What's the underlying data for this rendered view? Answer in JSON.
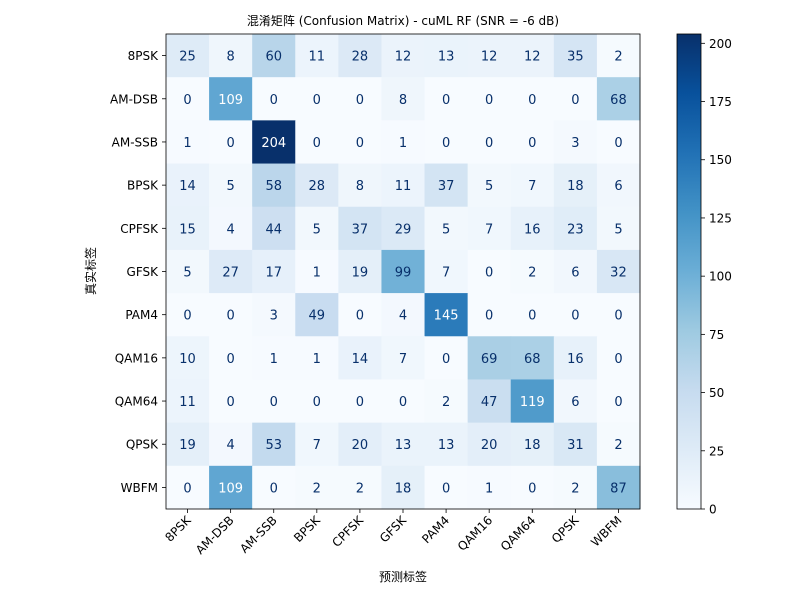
{
  "chart_data": {
    "type": "heatmap",
    "title": "混淆矩阵 (Confusion Matrix) - cuML RF (SNR = -6 dB)",
    "xlabel": "预测标签",
    "ylabel": "真实标签",
    "x_categories": [
      "8PSK",
      "AM-DSB",
      "AM-SSB",
      "BPSK",
      "CPFSK",
      "GFSK",
      "PAM4",
      "QAM16",
      "QAM64",
      "QPSK",
      "WBFM"
    ],
    "y_categories": [
      "8PSK",
      "AM-DSB",
      "AM-SSB",
      "BPSK",
      "CPFSK",
      "GFSK",
      "PAM4",
      "QAM16",
      "QAM64",
      "QPSK",
      "WBFM"
    ],
    "values": [
      [
        25,
        8,
        60,
        11,
        28,
        12,
        13,
        12,
        12,
        35,
        2
      ],
      [
        0,
        109,
        0,
        0,
        0,
        8,
        0,
        0,
        0,
        0,
        68
      ],
      [
        1,
        0,
        204,
        0,
        0,
        1,
        0,
        0,
        0,
        3,
        0
      ],
      [
        14,
        5,
        58,
        28,
        8,
        11,
        37,
        5,
        7,
        18,
        6
      ],
      [
        15,
        4,
        44,
        5,
        37,
        29,
        5,
        7,
        16,
        23,
        5
      ],
      [
        5,
        27,
        17,
        1,
        19,
        99,
        7,
        0,
        2,
        6,
        32
      ],
      [
        0,
        0,
        3,
        49,
        0,
        4,
        145,
        0,
        0,
        0,
        0
      ],
      [
        10,
        0,
        1,
        1,
        14,
        7,
        0,
        69,
        68,
        16,
        0
      ],
      [
        11,
        0,
        0,
        0,
        0,
        0,
        2,
        47,
        119,
        6,
        0
      ],
      [
        19,
        4,
        53,
        7,
        20,
        13,
        13,
        20,
        18,
        31,
        2
      ],
      [
        0,
        109,
        0,
        2,
        2,
        18,
        0,
        1,
        0,
        2,
        87
      ]
    ],
    "colormap": "Blues",
    "colorbar_range": [
      0,
      204
    ],
    "colorbar_ticks": [
      0,
      25,
      50,
      75,
      100,
      125,
      150,
      175,
      200
    ]
  }
}
